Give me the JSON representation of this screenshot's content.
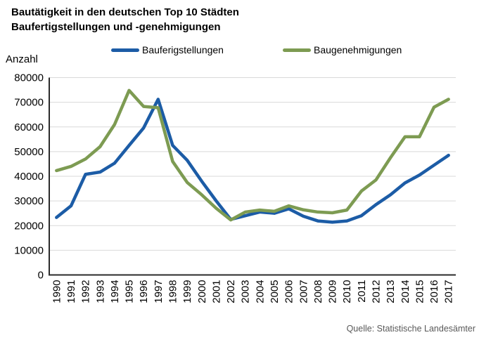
{
  "title": {
    "line1": "Bautätigkeit in den deutschen Top 10 Städten",
    "line2": "Baufertigstellungen und -genehmigungen"
  },
  "legend": {
    "items": [
      {
        "label": "Bauferigstellungen",
        "color": "#1C5CA6"
      },
      {
        "label": "Baugenehmigungen",
        "color": "#7D9B52"
      }
    ]
  },
  "source": "Quelle: Statistische Landesämter",
  "colors": {
    "grid": "#D9D9D9",
    "axis": "#2B2B2B",
    "text": "#000000",
    "source_text": "#595959"
  },
  "chart_data": {
    "type": "line",
    "title": "Bautätigkeit in den deutschen Top 10 Städten — Baufertigstellungen und -genehmigungen",
    "xlabel": "",
    "ylabel": "Anzahl",
    "ylim": [
      0,
      80000
    ],
    "y_ticks": [
      0,
      10000,
      20000,
      30000,
      40000,
      50000,
      60000,
      70000,
      80000
    ],
    "grid": true,
    "legend_position": "top",
    "categories": [
      "1990",
      "1991",
      "1992",
      "1993",
      "1994",
      "1995",
      "1996",
      "1997",
      "1998",
      "1999",
      "2000",
      "2001",
      "2002",
      "2003",
      "2004",
      "2005",
      "2006",
      "2007",
      "2008",
      "2009",
      "2010",
      "2011",
      "2012",
      "2013",
      "2014",
      "2015",
      "2016",
      "2017"
    ],
    "series": [
      {
        "name": "Bauferigstellungen",
        "color": "#1C5CA6",
        "values": [
          23300,
          28000,
          40800,
          41700,
          45300,
          52500,
          59600,
          71200,
          52500,
          46500,
          38000,
          30000,
          22500,
          24000,
          25500,
          25000,
          26800,
          23800,
          21900,
          21400,
          21900,
          24000,
          28500,
          32500,
          37300,
          40500,
          44500,
          48500
        ]
      },
      {
        "name": "Baugenehmigungen",
        "color": "#7D9B52",
        "values": [
          42300,
          44000,
          47000,
          52000,
          61000,
          74800,
          68300,
          67800,
          46000,
          37500,
          32500,
          27000,
          22300,
          25500,
          26300,
          25800,
          28000,
          26400,
          25500,
          25200,
          26300,
          34000,
          38500,
          47500,
          56000,
          56000,
          68000,
          71200
        ]
      }
    ]
  }
}
